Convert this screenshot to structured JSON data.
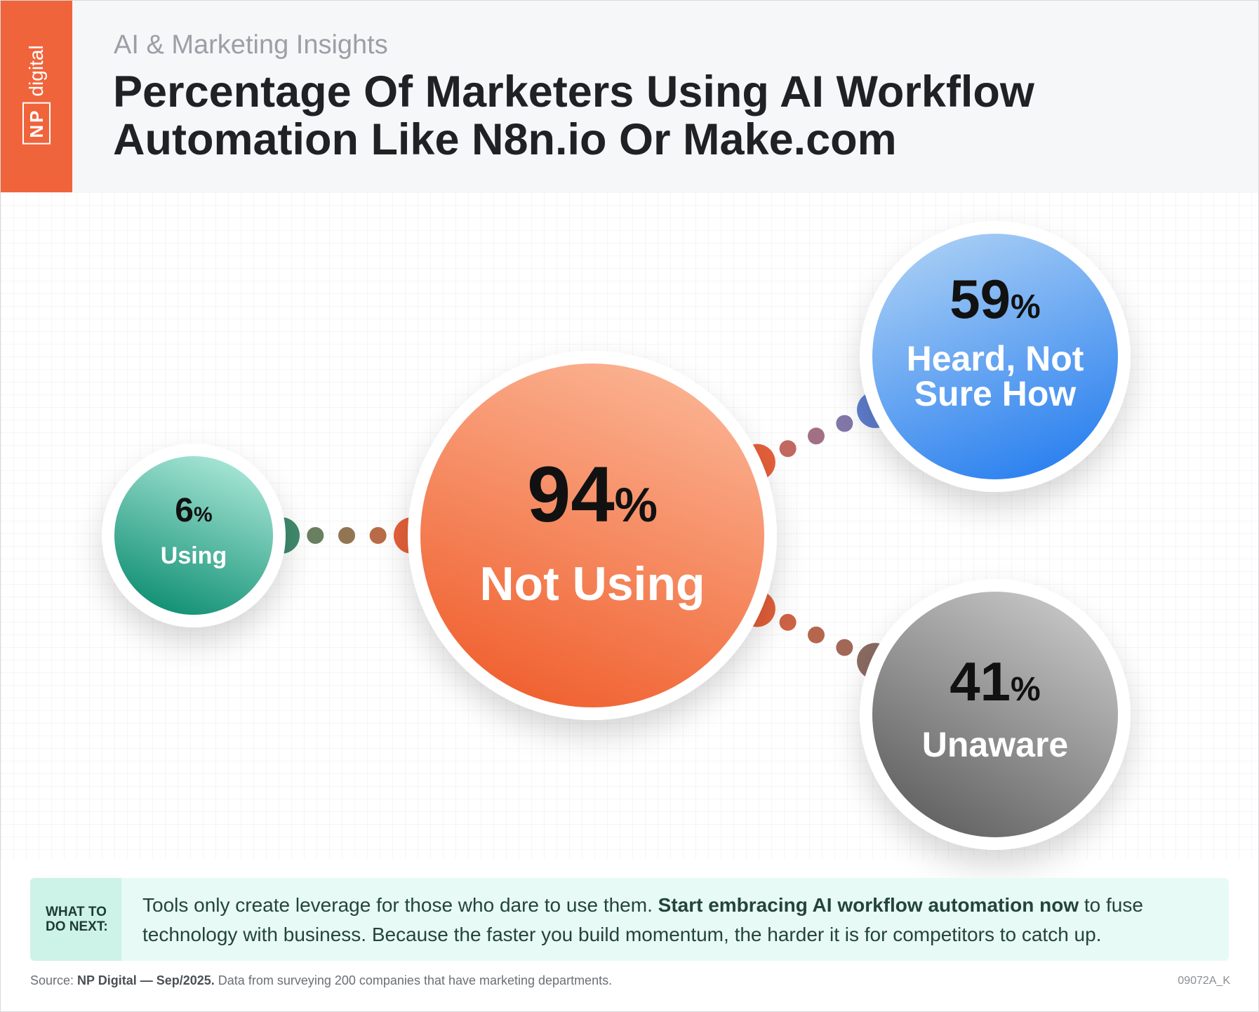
{
  "brand": {
    "np": "NP",
    "digital": "digital"
  },
  "header": {
    "kicker": "AI & Marketing Insights",
    "title": "Percentage Of Marketers Using AI Workflow Automation Like N8n.io Or Make.com"
  },
  "chart_data": {
    "type": "bubble",
    "title": "Percentage Of Marketers Using AI Workflow Automation Like N8n.io Or Make.com",
    "nodes": [
      {
        "id": "using",
        "value": 6,
        "label": "Using",
        "color": "#1f9a82",
        "parent": "root"
      },
      {
        "id": "not_using",
        "value": 94,
        "label": "Not Using",
        "color": "#f0643b",
        "parent": null
      },
      {
        "id": "heard",
        "value": 59,
        "label": "Heard, Not Sure How",
        "color": "#3d8ef0",
        "parent": "not_using"
      },
      {
        "id": "unaware",
        "value": 41,
        "label": "Unaware",
        "color": "#6f6f6f",
        "parent": "not_using"
      }
    ],
    "unit": "%"
  },
  "callout": {
    "tag": "WHAT TO DO NEXT:",
    "text_before": "Tools only create leverage for those who dare to use them. ",
    "text_bold": "Start embracing AI workflow automation now",
    "text_after": " to fuse technology with business. Because the faster you build momentum, the harder it is for competitors to catch up."
  },
  "footer": {
    "source_label": "Source: ",
    "source_bold": "NP Digital — Sep/2025.",
    "source_text": " Data from surveying 200 companies that have marketing departments.",
    "code": "09072A_K"
  }
}
